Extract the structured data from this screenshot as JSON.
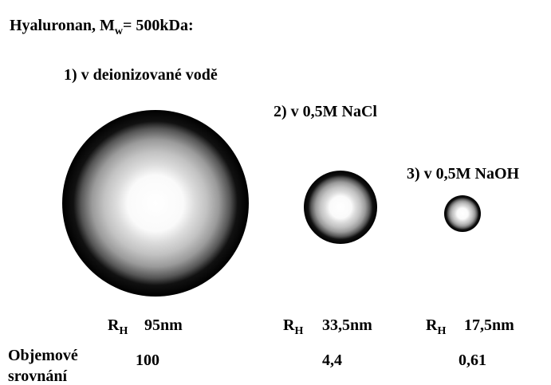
{
  "title": {
    "text": "Hyaluronan, M",
    "subscript": "w",
    "suffix": "= 500kDa:"
  },
  "conditions": [
    {
      "label": "1) v deionizované vodě",
      "radius_symbol": "R",
      "radius_subscript": "H",
      "radius": "95nm",
      "volume": "100"
    },
    {
      "label": "2) v 0,5M NaCl",
      "radius_symbol": "R",
      "radius_subscript": "H",
      "radius": "33,5nm",
      "volume": "4,4"
    },
    {
      "label": "3) v 0,5M NaOH",
      "radius_symbol": "R",
      "radius_subscript": "H",
      "radius": "17,5nm",
      "volume": "0,61"
    }
  ],
  "volume_label": [
    "Objemové",
    "srovnání"
  ]
}
